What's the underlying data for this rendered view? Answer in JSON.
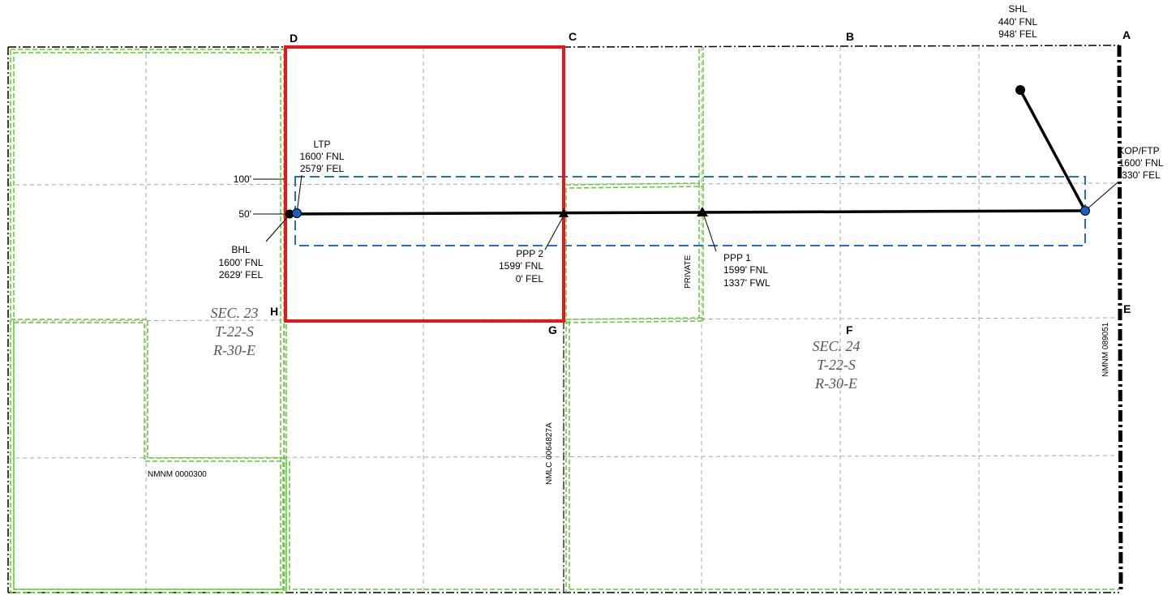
{
  "corners": [
    "A",
    "B",
    "C",
    "D",
    "E",
    "F",
    "G",
    "H"
  ],
  "shl": {
    "title": "SHL",
    "l1": "440' FNL",
    "l2": "948' FEL"
  },
  "kop": {
    "title": "KOP/FTP",
    "l1": "1600' FNL",
    "l2": "330' FEL"
  },
  "ltp": {
    "title": "LTP",
    "l1": "1600' FNL",
    "l2": "2579' FEL"
  },
  "bhl": {
    "title": "BHL",
    "l1": "1600' FNL",
    "l2": "2629' FEL"
  },
  "ppp1": {
    "title": "PPP 1",
    "l1": "1599' FNL",
    "l2": "1337' FWL"
  },
  "ppp2": {
    "title": "PPP 2",
    "l1": "1599' FNL",
    "l2": "0' FEL"
  },
  "offsets": {
    "o100": "100'",
    "o50": "50'"
  },
  "sec23": {
    "l1": "SEC. 23",
    "l2": "T-22-S",
    "l3": "R-30-E"
  },
  "sec24": {
    "l1": "SEC. 24",
    "l2": "T-22-S",
    "l3": "R-30-E"
  },
  "leases": {
    "private": "PRIVATE",
    "nmlc": "NMLC 0064827A",
    "nmnm300": "NMNM 0000300",
    "nmnm089051": "NMNM 089051"
  },
  "colors": {
    "unit": "#e8161a",
    "setback": "#1f6fd6",
    "lease": "#5ecb2f",
    "well": "#000000",
    "marker_blue": "#1f5fbf",
    "grid": "#a8a8a8"
  }
}
